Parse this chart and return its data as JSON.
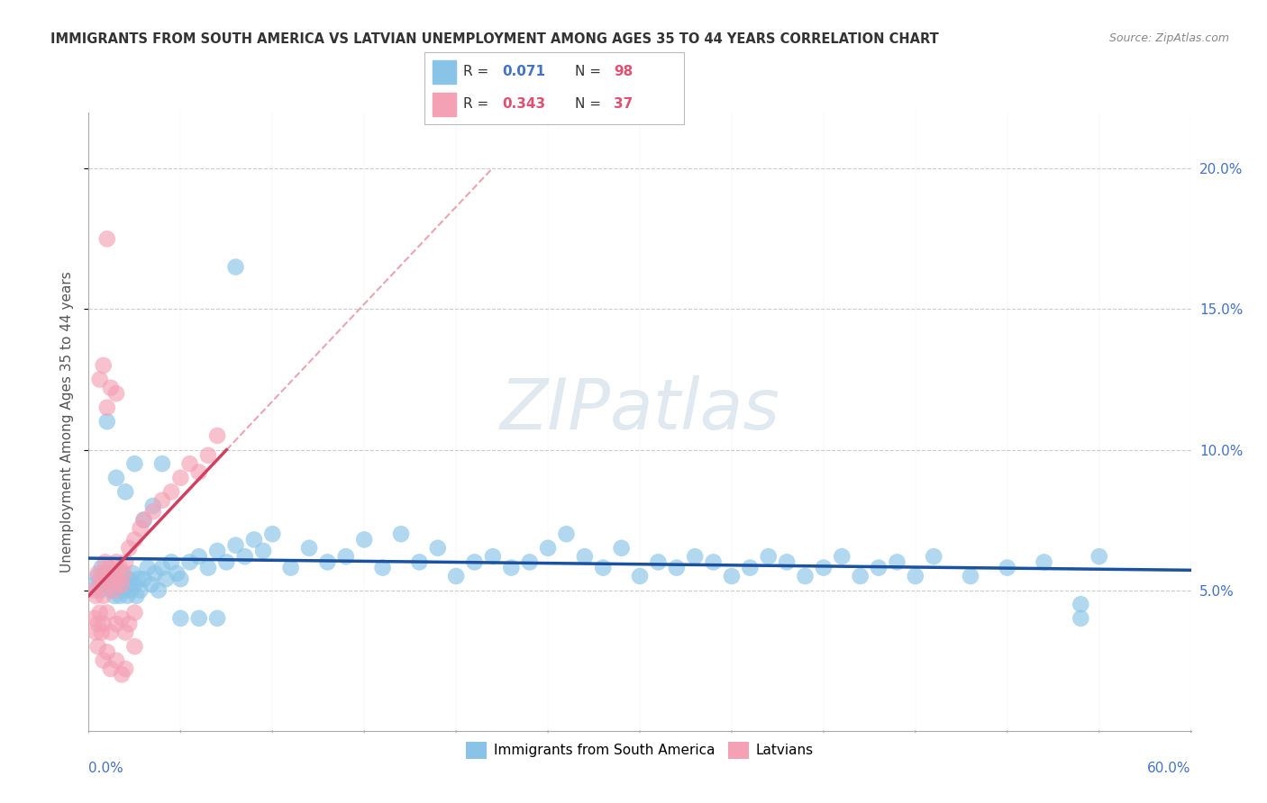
{
  "title": "IMMIGRANTS FROM SOUTH AMERICA VS LATVIAN UNEMPLOYMENT AMONG AGES 35 TO 44 YEARS CORRELATION CHART",
  "source": "Source: ZipAtlas.com",
  "ylabel": "Unemployment Among Ages 35 to 44 years",
  "xlim": [
    0.0,
    0.6
  ],
  "ylim": [
    0.0,
    0.22
  ],
  "blue_color": "#89C4E8",
  "pink_color": "#F4A0B5",
  "blue_line_color": "#1A52A0",
  "pink_line_color": "#D04060",
  "pink_dash_color": "#E08090",
  "watermark_color": "#DDDDDD",
  "grid_color": "#CCCCCC",
  "bg_color": "#FFFFFF",
  "ytick_color": "#4472C4",
  "legend_r_blue": "#4472C4",
  "legend_n_blue": "#E05070",
  "legend_r_pink": "#E05070",
  "legend_n_pink": "#E05070",
  "blue_scatter_x": [
    0.003,
    0.005,
    0.006,
    0.007,
    0.008,
    0.009,
    0.01,
    0.011,
    0.012,
    0.013,
    0.014,
    0.015,
    0.016,
    0.017,
    0.018,
    0.019,
    0.02,
    0.021,
    0.022,
    0.023,
    0.024,
    0.025,
    0.026,
    0.027,
    0.028,
    0.03,
    0.032,
    0.034,
    0.036,
    0.038,
    0.04,
    0.042,
    0.045,
    0.048,
    0.05,
    0.055,
    0.06,
    0.065,
    0.07,
    0.075,
    0.08,
    0.085,
    0.09,
    0.095,
    0.1,
    0.11,
    0.12,
    0.13,
    0.14,
    0.15,
    0.16,
    0.17,
    0.18,
    0.19,
    0.2,
    0.21,
    0.22,
    0.23,
    0.24,
    0.25,
    0.26,
    0.27,
    0.28,
    0.29,
    0.3,
    0.31,
    0.32,
    0.33,
    0.34,
    0.35,
    0.36,
    0.37,
    0.38,
    0.39,
    0.4,
    0.41,
    0.42,
    0.43,
    0.44,
    0.45,
    0.46,
    0.48,
    0.5,
    0.52,
    0.54,
    0.55,
    0.01,
    0.015,
    0.02,
    0.025,
    0.03,
    0.035,
    0.04,
    0.05,
    0.06,
    0.07,
    0.08,
    0.54
  ],
  "blue_scatter_y": [
    0.052,
    0.055,
    0.05,
    0.058,
    0.054,
    0.056,
    0.052,
    0.054,
    0.05,
    0.056,
    0.048,
    0.054,
    0.052,
    0.048,
    0.056,
    0.05,
    0.052,
    0.048,
    0.054,
    0.05,
    0.056,
    0.052,
    0.048,
    0.054,
    0.05,
    0.054,
    0.058,
    0.052,
    0.056,
    0.05,
    0.058,
    0.054,
    0.06,
    0.056,
    0.054,
    0.06,
    0.062,
    0.058,
    0.064,
    0.06,
    0.066,
    0.062,
    0.068,
    0.064,
    0.07,
    0.058,
    0.065,
    0.06,
    0.062,
    0.068,
    0.058,
    0.07,
    0.06,
    0.065,
    0.055,
    0.06,
    0.062,
    0.058,
    0.06,
    0.065,
    0.07,
    0.062,
    0.058,
    0.065,
    0.055,
    0.06,
    0.058,
    0.062,
    0.06,
    0.055,
    0.058,
    0.062,
    0.06,
    0.055,
    0.058,
    0.062,
    0.055,
    0.058,
    0.06,
    0.055,
    0.062,
    0.055,
    0.058,
    0.06,
    0.045,
    0.062,
    0.11,
    0.09,
    0.085,
    0.095,
    0.075,
    0.08,
    0.095,
    0.04,
    0.04,
    0.04,
    0.165,
    0.04
  ],
  "pink_scatter_x": [
    0.003,
    0.004,
    0.005,
    0.006,
    0.007,
    0.008,
    0.009,
    0.01,
    0.011,
    0.012,
    0.013,
    0.014,
    0.015,
    0.016,
    0.017,
    0.018,
    0.019,
    0.02,
    0.022,
    0.025,
    0.028,
    0.03,
    0.035,
    0.04,
    0.045,
    0.05,
    0.055,
    0.06,
    0.065,
    0.07,
    0.005,
    0.008,
    0.01,
    0.012,
    0.015,
    0.018,
    0.02
  ],
  "pink_scatter_y": [
    0.05,
    0.048,
    0.056,
    0.052,
    0.055,
    0.048,
    0.06,
    0.054,
    0.058,
    0.052,
    0.056,
    0.05,
    0.06,
    0.054,
    0.058,
    0.052,
    0.056,
    0.06,
    0.065,
    0.068,
    0.072,
    0.075,
    0.078,
    0.082,
    0.085,
    0.09,
    0.095,
    0.092,
    0.098,
    0.105,
    0.03,
    0.025,
    0.028,
    0.022,
    0.025,
    0.02,
    0.022
  ],
  "pink_extra_scatter_x": [
    0.003,
    0.004,
    0.005,
    0.006,
    0.007,
    0.008,
    0.01,
    0.012,
    0.015,
    0.018,
    0.02,
    0.022,
    0.025,
    0.025,
    0.01,
    0.008,
    0.006,
    0.015,
    0.01,
    0.012
  ],
  "pink_extra_scatter_y": [
    0.04,
    0.035,
    0.038,
    0.042,
    0.035,
    0.038,
    0.042,
    0.035,
    0.038,
    0.04,
    0.035,
    0.038,
    0.042,
    0.03,
    0.175,
    0.13,
    0.125,
    0.12,
    0.115,
    0.122
  ]
}
